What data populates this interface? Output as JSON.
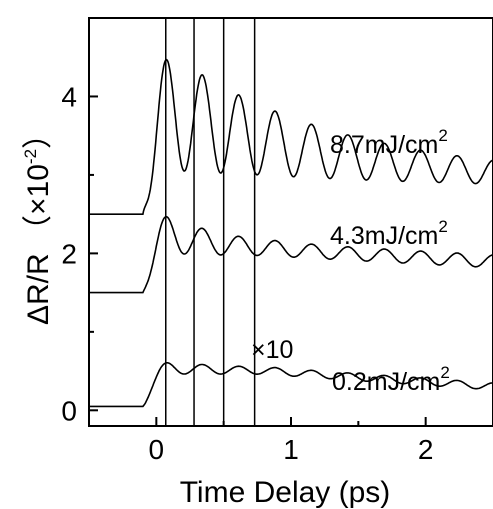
{
  "chart_data": {
    "type": "line",
    "xlabel": "Time Delay (ps)",
    "ylabel": "ΔR/R （×10",
    "ylabel_exp": "-2",
    "ylabel_close": "）",
    "xlim": [
      -0.5,
      2.5
    ],
    "ylim": [
      -0.2,
      5.0
    ],
    "x_ticks": [
      0,
      1,
      2
    ],
    "x_tick_labels": [
      "0",
      "1",
      "2"
    ],
    "y_ticks": [
      0,
      2,
      4
    ],
    "y_tick_labels": [
      "0",
      "2",
      "4"
    ],
    "grid": false,
    "legend": "none",
    "vertical_lines": [
      0.07,
      0.28,
      0.5,
      0.73
    ],
    "series": [
      {
        "label": "8.7mJ/cm",
        "label_exp": "2",
        "baseline": 2.5,
        "tail": 2.9,
        "end": 2.85,
        "amp": 1.95,
        "freq": 3.7,
        "decay": 1.15,
        "tail_amp": 0.15
      },
      {
        "label": "4.3mJ/cm",
        "label_exp": "2",
        "baseline": 1.5,
        "tail": 1.95,
        "end": 1.8,
        "amp": 0.85,
        "freq": 3.7,
        "decay": 0.35,
        "tail_amp": 0.18
      },
      {
        "label": "0.2mJ/cm",
        "label_exp": "2",
        "baseline": 0.05,
        "tail": 0.45,
        "end": 0.25,
        "amp": 0.3,
        "freq": 3.7,
        "decay": 0.25,
        "tail_amp": 0.1,
        "multiplier_label": "×10"
      }
    ]
  }
}
